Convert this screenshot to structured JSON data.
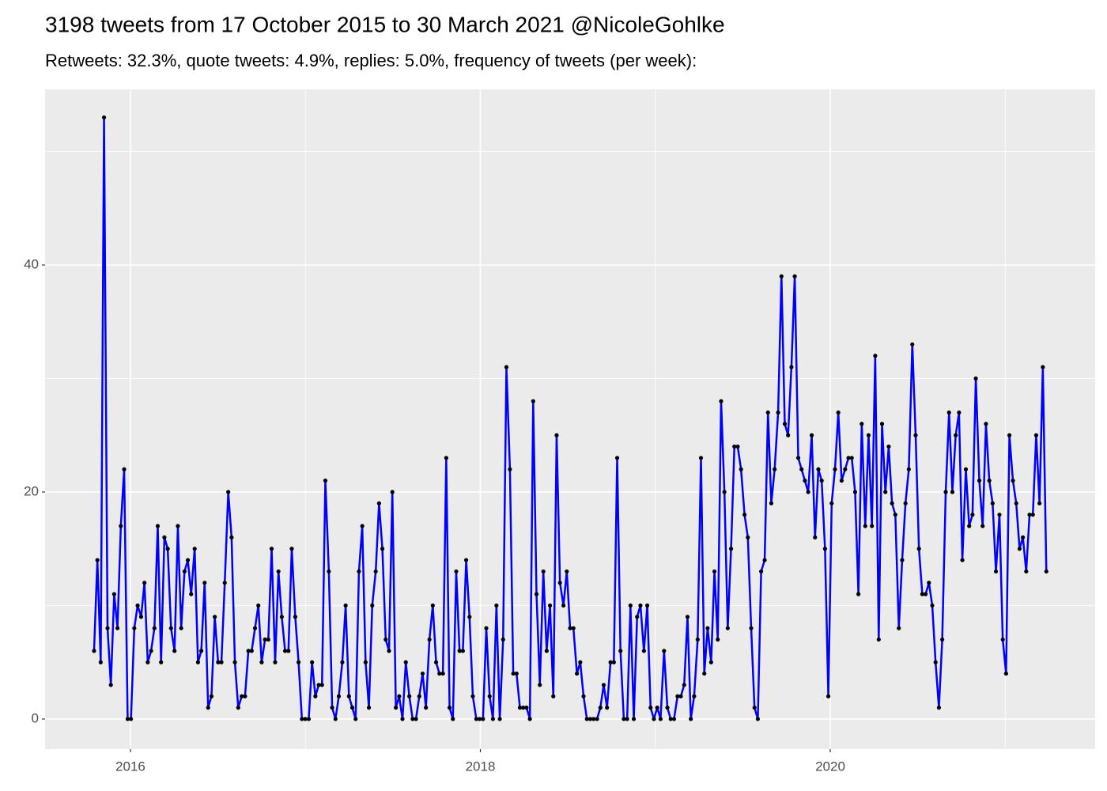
{
  "chart_data": {
    "type": "line",
    "title": "3198 tweets from 17 October 2015 to 30 March 2021 @NicoleGohlke",
    "subtitle": "Retweets: 32.3%, quote tweets: 4.9%, replies: 5.0%, frequency of tweets (per week):",
    "color": "#0000ff",
    "point_color": "#000000",
    "grid": true,
    "minor_grid": true,
    "xlim": [
      2015.512,
      2021.514
    ],
    "xticks": [
      2016,
      2018,
      2020
    ],
    "ylim": [
      -2.65,
      55.47
    ],
    "yticks": [
      0,
      20,
      40
    ],
    "x": [
      2015.792,
      2015.811,
      2015.83,
      2015.849,
      2015.869,
      2015.888,
      2015.907,
      2015.926,
      2015.945,
      2015.964,
      2015.984,
      2016.003,
      2016.022,
      2016.041,
      2016.061,
      2016.08,
      2016.099,
      2016.118,
      2016.137,
      2016.156,
      2016.175,
      2016.194,
      2016.213,
      2016.232,
      2016.252,
      2016.271,
      2016.29,
      2016.309,
      2016.328,
      2016.347,
      2016.367,
      2016.386,
      2016.405,
      2016.424,
      2016.444,
      2016.463,
      2016.482,
      2016.501,
      2016.52,
      2016.539,
      2016.559,
      2016.578,
      2016.597,
      2016.616,
      2016.636,
      2016.655,
      2016.674,
      2016.693,
      2016.712,
      2016.731,
      2016.75,
      2016.769,
      2016.788,
      2016.807,
      2016.827,
      2016.846,
      2016.865,
      2016.884,
      2016.903,
      2016.922,
      2016.942,
      2016.961,
      2016.98,
      2016.999,
      2017.019,
      2017.038,
      2017.057,
      2017.076,
      2017.095,
      2017.114,
      2017.134,
      2017.153,
      2017.172,
      2017.191,
      2017.211,
      2017.23,
      2017.249,
      2017.268,
      2017.287,
      2017.306,
      2017.325,
      2017.344,
      2017.363,
      2017.382,
      2017.402,
      2017.421,
      2017.44,
      2017.459,
      2017.478,
      2017.497,
      2017.517,
      2017.536,
      2017.555,
      2017.574,
      2017.594,
      2017.613,
      2017.632,
      2017.651,
      2017.67,
      2017.689,
      2017.709,
      2017.728,
      2017.747,
      2017.766,
      2017.786,
      2017.805,
      2017.824,
      2017.843,
      2017.862,
      2017.881,
      2017.9,
      2017.919,
      2017.938,
      2017.957,
      2017.977,
      2017.996,
      2018.015,
      2018.034,
      2018.053,
      2018.072,
      2018.092,
      2018.111,
      2018.13,
      2018.149,
      2018.169,
      2018.188,
      2018.207,
      2018.226,
      2018.245,
      2018.264,
      2018.283,
      2018.302,
      2018.321,
      2018.34,
      2018.36,
      2018.379,
      2018.398,
      2018.417,
      2018.436,
      2018.455,
      2018.475,
      2018.494,
      2018.513,
      2018.532,
      2018.552,
      2018.571,
      2018.59,
      2018.609,
      2018.628,
      2018.647,
      2018.667,
      2018.686,
      2018.705,
      2018.724,
      2018.744,
      2018.763,
      2018.782,
      2018.801,
      2018.82,
      2018.839,
      2018.858,
      2018.877,
      2018.896,
      2018.915,
      2018.935,
      2018.954,
      2018.973,
      2018.992,
      2019.011,
      2019.03,
      2019.05,
      2019.069,
      2019.088,
      2019.107,
      2019.127,
      2019.146,
      2019.165,
      2019.184,
      2019.203,
      2019.222,
      2019.242,
      2019.261,
      2019.28,
      2019.299,
      2019.319,
      2019.338,
      2019.357,
      2019.376,
      2019.395,
      2019.414,
      2019.433,
      2019.452,
      2019.471,
      2019.49,
      2019.51,
      2019.529,
      2019.548,
      2019.567,
      2019.586,
      2019.605,
      2019.625,
      2019.644,
      2019.663,
      2019.682,
      2019.702,
      2019.721,
      2019.74,
      2019.759,
      2019.778,
      2019.797,
      2019.817,
      2019.836,
      2019.855,
      2019.874,
      2019.894,
      2019.913,
      2019.932,
      2019.951,
      2019.97,
      2019.989,
      2020.008,
      2020.027,
      2020.046,
      2020.065,
      2020.085,
      2020.104,
      2020.123,
      2020.142,
      2020.161,
      2020.18,
      2020.2,
      2020.219,
      2020.238,
      2020.257,
      2020.277,
      2020.296,
      2020.315,
      2020.334,
      2020.353,
      2020.372,
      2020.392,
      2020.411,
      2020.43,
      2020.449,
      2020.469,
      2020.488,
      2020.507,
      2020.526,
      2020.545,
      2020.564,
      2020.583,
      2020.602,
      2020.621,
      2020.64,
      2020.66,
      2020.679,
      2020.698,
      2020.717,
      2020.736,
      2020.755,
      2020.775,
      2020.794,
      2020.813,
      2020.832,
      2020.852,
      2020.871,
      2020.89,
      2020.909,
      2020.928,
      2020.947,
      2020.967,
      2020.986,
      2021.005,
      2021.024,
      2021.044,
      2021.063,
      2021.082,
      2021.101,
      2021.12,
      2021.139,
      2021.158,
      2021.177,
      2021.196,
      2021.215,
      2021.235
    ],
    "values": [
      6,
      14,
      5,
      53,
      8,
      3,
      11,
      8,
      17,
      22,
      0,
      0,
      8,
      10,
      9,
      12,
      5,
      6,
      8,
      17,
      5,
      16,
      15,
      8,
      6,
      17,
      8,
      13,
      14,
      11,
      15,
      5,
      6,
      12,
      1,
      2,
      9,
      5,
      5,
      12,
      20,
      16,
      5,
      1,
      2,
      2,
      6,
      6,
      8,
      10,
      5,
      7,
      7,
      15,
      5,
      13,
      9,
      6,
      6,
      15,
      9,
      5,
      0,
      0,
      0,
      5,
      2,
      3,
      3,
      21,
      13,
      1,
      0,
      2,
      5,
      10,
      2,
      1,
      0,
      13,
      17,
      5,
      1,
      10,
      13,
      19,
      15,
      7,
      6,
      20,
      1,
      2,
      0,
      5,
      2,
      0,
      0,
      2,
      4,
      1,
      7,
      10,
      5,
      4,
      4,
      23,
      1,
      0,
      13,
      6,
      6,
      14,
      9,
      2,
      0,
      0,
      0,
      8,
      2,
      0,
      10,
      0,
      7,
      31,
      22,
      4,
      4,
      1,
      1,
      1,
      0,
      28,
      11,
      3,
      13,
      6,
      10,
      2,
      25,
      12,
      10,
      13,
      8,
      8,
      4,
      5,
      2,
      0,
      0,
      0,
      0,
      1,
      3,
      1,
      5,
      5,
      23,
      6,
      0,
      0,
      10,
      0,
      9,
      10,
      6,
      10,
      1,
      0,
      1,
      0,
      6,
      1,
      0,
      0,
      2,
      2,
      3,
      9,
      0,
      2,
      7,
      23,
      4,
      8,
      5,
      13,
      7,
      28,
      20,
      8,
      15,
      24,
      24,
      22,
      18,
      16,
      8,
      1,
      0,
      13,
      14,
      27,
      19,
      22,
      27,
      39,
      26,
      25,
      31,
      39,
      23,
      22,
      21,
      20,
      25,
      16,
      22,
      21,
      15,
      2,
      19,
      22,
      27,
      21,
      22,
      23,
      23,
      20,
      11,
      26,
      17,
      25,
      17,
      32,
      7,
      26,
      20,
      24,
      19,
      18,
      8,
      14,
      19,
      22,
      33,
      25,
      15,
      11,
      11,
      12,
      10,
      5,
      1,
      7,
      20,
      27,
      20,
      25,
      27,
      14,
      22,
      17,
      18,
      30,
      21,
      17,
      26,
      21,
      19,
      13,
      18,
      7,
      4,
      25,
      21,
      19,
      15,
      16,
      13,
      18,
      18,
      25,
      19,
      31,
      13
    ]
  }
}
